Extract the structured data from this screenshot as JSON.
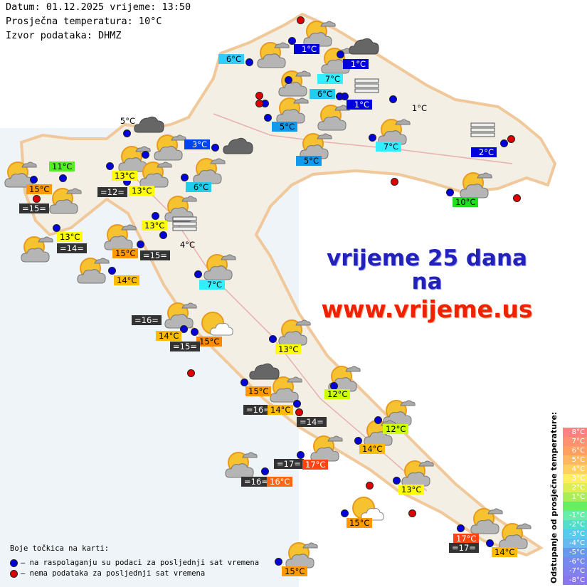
{
  "header": {
    "date_line": "Datum: 01.12.2025 vrijeme: 13:50",
    "avg_temp_line": "Prosječna temperatura: 10°C",
    "source_line": "Izvor podataka: DHMZ"
  },
  "banner": {
    "line1": "vrijeme 25 dana",
    "line2": "na",
    "line3": "www.vrijeme.us"
  },
  "dot_legend": {
    "title": "Boje točkica na karti:",
    "available": {
      "color": "#0000dd",
      "text": "– na raspolaganju su podaci za posljednji sat vremena"
    },
    "unavailable": {
      "color": "#dd0000",
      "text": "– nema podataka za posljednji sat vremena"
    }
  },
  "scale_legend": {
    "title": "Odstupanje od prosječne temperature:",
    "steps": [
      {
        "label": "8°C",
        "color": "#ff8080"
      },
      {
        "label": "7°C",
        "color": "#ff9070"
      },
      {
        "label": "6°C",
        "color": "#ffa060"
      },
      {
        "label": "5°C",
        "color": "#ffb860"
      },
      {
        "label": "4°C",
        "color": "#ffd060"
      },
      {
        "label": "3°C",
        "color": "#ffee60"
      },
      {
        "label": "2°C",
        "color": "#ddee55"
      },
      {
        "label": "1°C",
        "color": "#aaee55"
      },
      {
        "label": "",
        "color": "#66ee66"
      },
      {
        "label": "-1°C",
        "color": "#66eeaa"
      },
      {
        "label": "-2°C",
        "color": "#55ddcc"
      },
      {
        "label": "-3°C",
        "color": "#55ccee"
      },
      {
        "label": "-4°C",
        "color": "#66bbee"
      },
      {
        "label": "-5°C",
        "color": "#6699ee"
      },
      {
        "label": "-6°C",
        "color": "#7788ee"
      },
      {
        "label": "-7°C",
        "color": "#8080ee"
      },
      {
        "label": "-8°C",
        "color": "#8877ee"
      }
    ]
  },
  "labels": [
    {
      "text": "6°C",
      "bg": "#33ccff",
      "fg": "#000"
    },
    {
      "text": "1°C",
      "bg": "#0000dd",
      "fg": "#fff"
    },
    {
      "text": "1°C",
      "bg": "#0000dd",
      "fg": "#fff"
    },
    {
      "text": "7°C",
      "bg": "#33eeff",
      "fg": "#000"
    },
    {
      "text": "6°C",
      "bg": "#22ccee",
      "fg": "#000"
    },
    {
      "text": "1°C",
      "bg": "#0000dd",
      "fg": "#fff"
    },
    {
      "text": "5°C",
      "bg": "#1199ee",
      "fg": "#000"
    },
    {
      "text": "5°C",
      "bg": "#1199ee",
      "fg": "#000"
    },
    {
      "text": "7°C",
      "bg": "#33eeff",
      "fg": "#000"
    },
    {
      "text": "1°C",
      "bg": "transparent",
      "fg": "#000"
    },
    {
      "text": "2°C",
      "bg": "#0000dd",
      "fg": "#fff"
    },
    {
      "text": "10°C",
      "bg": "#22dd22",
      "fg": "#000"
    },
    {
      "text": "3°C",
      "bg": "#0044ee",
      "fg": "#fff"
    },
    {
      "text": "6°C",
      "bg": "#22ccee",
      "fg": "#000"
    },
    {
      "text": "11°C",
      "bg": "#55ee22",
      "fg": "#000"
    },
    {
      "text": "15°C",
      "bg": "#ff9900",
      "fg": "#000"
    },
    {
      "text": "=15=",
      "bg": "#333333",
      "fg": "#fff"
    },
    {
      "text": "13°C",
      "bg": "#ffff00",
      "fg": "#000"
    },
    {
      "text": "=12=",
      "bg": "#333333",
      "fg": "#fff"
    },
    {
      "text": "13°C",
      "bg": "#ffff00",
      "fg": "#000"
    },
    {
      "text": "5°C",
      "bg": "transparent",
      "fg": "#000"
    },
    {
      "text": "13°C",
      "bg": "#ffff00",
      "fg": "#000"
    },
    {
      "text": "4°C",
      "bg": "transparent",
      "fg": "#000"
    },
    {
      "text": "13°C",
      "bg": "#ffff00",
      "fg": "#000"
    },
    {
      "text": "=14=",
      "bg": "#333333",
      "fg": "#fff"
    },
    {
      "text": "15°C",
      "bg": "#ff9900",
      "fg": "#000"
    },
    {
      "text": "=15=",
      "bg": "#333333",
      "fg": "#fff"
    },
    {
      "text": "14°C",
      "bg": "#ffbb00",
      "fg": "#000"
    },
    {
      "text": "7°C",
      "bg": "#33eeff",
      "fg": "#000"
    },
    {
      "text": "=16=",
      "bg": "#333333",
      "fg": "#fff"
    },
    {
      "text": "14°C",
      "bg": "#ffbb00",
      "fg": "#000"
    },
    {
      "text": "15°C",
      "bg": "#ff8800",
      "fg": "#000"
    },
    {
      "text": "=15=",
      "bg": "#333333",
      "fg": "#fff"
    },
    {
      "text": "13°C",
      "bg": "#ffff00",
      "fg": "#000"
    },
    {
      "text": "12°C",
      "bg": "#ccff00",
      "fg": "#000"
    },
    {
      "text": "15°C",
      "bg": "#ff9900",
      "fg": "#000"
    },
    {
      "text": "=16=",
      "bg": "#333333",
      "fg": "#fff"
    },
    {
      "text": "14°C",
      "bg": "#ffbb00",
      "fg": "#000"
    },
    {
      "text": "=14=",
      "bg": "#333333",
      "fg": "#fff"
    },
    {
      "text": "12°C",
      "bg": "#ccff00",
      "fg": "#000"
    },
    {
      "text": "14°C",
      "bg": "#ffbb00",
      "fg": "#000"
    },
    {
      "text": "=17=",
      "bg": "#333333",
      "fg": "#fff"
    },
    {
      "text": "17°C",
      "bg": "#ff4411",
      "fg": "#fff"
    },
    {
      "text": "=16=",
      "bg": "#333333",
      "fg": "#fff"
    },
    {
      "text": "16°C",
      "bg": "#ff6611",
      "fg": "#fff"
    },
    {
      "text": "13°C",
      "bg": "#ffff00",
      "fg": "#000"
    },
    {
      "text": "15°C",
      "bg": "#ff9900",
      "fg": "#000"
    },
    {
      "text": "17°C",
      "bg": "#ff4411",
      "fg": "#fff"
    },
    {
      "text": "=17=",
      "bg": "#333333",
      "fg": "#fff"
    },
    {
      "text": "14°C",
      "bg": "#ffbb00",
      "fg": "#000"
    },
    {
      "text": "15°C",
      "bg": "#ff9900",
      "fg": "#000"
    }
  ],
  "stations_available_count_note": null,
  "icons": {
    "partly_cloudy": "sun-cloud-icon",
    "overcast": "dark-cloud-icon",
    "fog": "fog-icon",
    "mostly_sunny": "sun-white-cloud-icon"
  }
}
